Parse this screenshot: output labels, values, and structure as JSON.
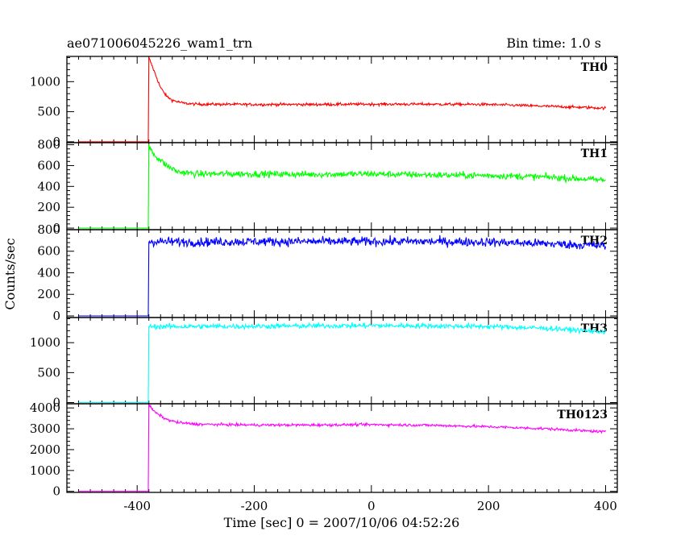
{
  "chart_data": {
    "type": "line",
    "title": "ae071006045226_wam1_trn",
    "bin_time": "Bin time: 1.0 s",
    "xlabel": "Time [sec] 0 = 2007/10/06 04:52:26",
    "ylabel": "Counts/sec",
    "xlim": [
      -520,
      420
    ],
    "x_ticks": [
      -400,
      -200,
      0,
      200,
      400
    ],
    "grid": false,
    "panels": [
      {
        "name": "TH0",
        "color": "#ff0000",
        "ylim": [
          -15,
          1420
        ],
        "y_ticks": [
          0,
          500,
          1000
        ],
        "baseline": 0,
        "onset": -380,
        "peak": 1400,
        "decay_to": 620,
        "decay_tau": 20,
        "x_end": 400,
        "end_level": 560,
        "noise": 22,
        "points": [
          [
            -500,
            0
          ],
          [
            -381,
            0
          ],
          [
            -380,
            1400
          ],
          [
            -370,
            1150
          ],
          [
            -360,
            900
          ],
          [
            -350,
            760
          ],
          [
            -340,
            690
          ],
          [
            -320,
            640
          ],
          [
            -300,
            625
          ],
          [
            -200,
            620
          ],
          [
            -100,
            620
          ],
          [
            0,
            625
          ],
          [
            100,
            625
          ],
          [
            200,
            620
          ],
          [
            300,
            590
          ],
          [
            400,
            560
          ]
        ]
      },
      {
        "name": "TH1",
        "color": "#00ff00",
        "ylim": [
          -15,
          820
        ],
        "y_ticks": [
          0,
          200,
          400,
          600,
          800
        ],
        "baseline": 0,
        "onset": -380,
        "peak": 780,
        "decay_to": 520,
        "decay_tau": 25,
        "x_end": 400,
        "end_level": 460,
        "noise": 30,
        "points": [
          [
            -500,
            0
          ],
          [
            -381,
            0
          ],
          [
            -380,
            780
          ],
          [
            -370,
            700
          ],
          [
            -350,
            600
          ],
          [
            -330,
            540
          ],
          [
            -300,
            520
          ],
          [
            -200,
            520
          ],
          [
            -100,
            515
          ],
          [
            0,
            520
          ],
          [
            100,
            510
          ],
          [
            200,
            505
          ],
          [
            300,
            490
          ],
          [
            400,
            460
          ]
        ]
      },
      {
        "name": "TH2",
        "color": "#0000ff",
        "ylim": [
          -15,
          800
        ],
        "y_ticks": [
          0,
          200,
          400,
          600,
          800
        ],
        "baseline": 0,
        "onset": -380,
        "peak": 690,
        "decay_to": 680,
        "decay_tau": 10,
        "x_end": 400,
        "end_level": 650,
        "noise": 40,
        "points": [
          [
            -500,
            0
          ],
          [
            -381,
            0
          ],
          [
            -380,
            690
          ],
          [
            -300,
            685
          ],
          [
            -200,
            690
          ],
          [
            -100,
            690
          ],
          [
            0,
            690
          ],
          [
            100,
            690
          ],
          [
            200,
            685
          ],
          [
            300,
            670
          ],
          [
            400,
            650
          ]
        ]
      },
      {
        "name": "TH3",
        "color": "#00ffff",
        "ylim": [
          -20,
          1420
        ],
        "y_ticks": [
          0,
          500,
          1000
        ],
        "baseline": 0,
        "onset": -380,
        "peak": 1270,
        "decay_to": 1270,
        "decay_tau": 10,
        "x_end": 400,
        "end_level": 1180,
        "noise": 40,
        "points": [
          [
            -500,
            0
          ],
          [
            -381,
            0
          ],
          [
            -380,
            1270
          ],
          [
            -300,
            1270
          ],
          [
            -200,
            1275
          ],
          [
            -100,
            1280
          ],
          [
            0,
            1285
          ],
          [
            100,
            1280
          ],
          [
            200,
            1270
          ],
          [
            300,
            1240
          ],
          [
            400,
            1180
          ]
        ]
      },
      {
        "name": "TH0123",
        "color": "#ff00ff",
        "ylim": [
          -50,
          4200
        ],
        "y_ticks": [
          0,
          1000,
          2000,
          3000,
          4000
        ],
        "baseline": 0,
        "onset": -380,
        "peak": 4150,
        "decay_to": 3200,
        "decay_tau": 20,
        "x_end": 400,
        "end_level": 2850,
        "noise": 60,
        "points": [
          [
            -500,
            0
          ],
          [
            -381,
            0
          ],
          [
            -380,
            4150
          ],
          [
            -370,
            3800
          ],
          [
            -350,
            3450
          ],
          [
            -330,
            3300
          ],
          [
            -300,
            3220
          ],
          [
            -200,
            3180
          ],
          [
            -100,
            3180
          ],
          [
            0,
            3200
          ],
          [
            100,
            3170
          ],
          [
            200,
            3100
          ],
          [
            300,
            3000
          ],
          [
            400,
            2850
          ]
        ]
      }
    ]
  }
}
